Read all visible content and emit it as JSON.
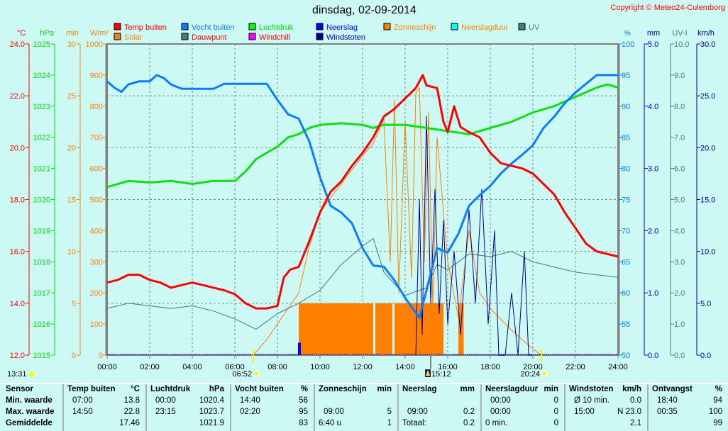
{
  "title": "dinsdag, 02-09-2014",
  "copyright": "Copyright © Meteo24-Culemborg",
  "colors": {
    "background": "#cdf9f5",
    "temp": "#ff0000",
    "humidity": "#0a7dff",
    "pressure": "#10e010",
    "rain": "#0000ff",
    "solar": "#ff8000",
    "dewpoint": "#3c7a7a",
    "windchill": "#ff00ff",
    "gusts": "#00009a",
    "sunshine": "#ff8000",
    "rainduration": "#00ffff",
    "uv": "#408080"
  },
  "legend": [
    {
      "label": "Temp buiten",
      "color": "#ff0000",
      "text_color": "#ff0000"
    },
    {
      "label": "Vocht buiten",
      "color": "#0a7dff",
      "text_color": "#0a7dff"
    },
    {
      "label": "Luchtdruk",
      "color": "#00ff00",
      "text_color": "#00e000"
    },
    {
      "label": "Neerslag",
      "color": "#0000ff",
      "text_color": "#0000ff"
    },
    {
      "label": "Zonneschijn",
      "color": "#ff8000",
      "text_color": "#ff8000"
    },
    {
      "label": "Neerslagduur",
      "color": "#00ffff",
      "text_color": "#ff8000"
    },
    {
      "label": "UV",
      "color": "#408080",
      "text_color": "#408080"
    },
    {
      "label": "Solar",
      "color": "#ff8000",
      "text_color": "#ff8000"
    },
    {
      "label": "Dauwpunt",
      "color": "#408080",
      "text_color": "#ff0000"
    },
    {
      "label": "Windchill",
      "color": "#ff00ff",
      "text_color": "#ff0000"
    },
    {
      "label": "Windstoten",
      "color": "#00009a",
      "text_color": "#00009a"
    }
  ],
  "chart_data": {
    "type": "line",
    "title": "dinsdag, 02-09-2014",
    "grid": true,
    "legend_position": "top",
    "x_ticks": [
      "00:00",
      "02:00",
      "04:00",
      "06:00",
      "08:00",
      "10:00",
      "12:00",
      "14:00",
      "16:00",
      "18:00",
      "20:00",
      "22:00",
      "24:00"
    ],
    "xlim": [
      0,
      24
    ],
    "axes": [
      {
        "unit": "°C",
        "side": "left",
        "range": [
          12,
          24
        ],
        "ticks": [
          "12.0",
          "14.0",
          "16.0",
          "18.0",
          "20.0",
          "22.0",
          "24.0"
        ],
        "color": "#ff0000"
      },
      {
        "unit": "hPa",
        "side": "left",
        "range": [
          1015,
          1025
        ],
        "ticks": [
          "1015",
          "1016",
          "1017",
          "1018",
          "1019",
          "1020",
          "1021",
          "1022",
          "1023",
          "1024",
          "1025"
        ],
        "color": "#00e000"
      },
      {
        "unit": "min",
        "side": "left",
        "range": [
          0,
          30
        ],
        "ticks": [
          "0",
          "5",
          "10",
          "15",
          "20",
          "25",
          "30"
        ],
        "color": "#ff8000"
      },
      {
        "unit": "W/m²",
        "side": "left",
        "range": [
          0,
          1000
        ],
        "ticks": [
          "0",
          "100",
          "200",
          "300",
          "400",
          "500",
          "600",
          "700",
          "800",
          "900",
          "1000"
        ],
        "color": "#ff8000"
      },
      {
        "unit": "%",
        "side": "right",
        "range": [
          50,
          100
        ],
        "ticks": [
          "50",
          "55",
          "60",
          "65",
          "70",
          "75",
          "80",
          "85",
          "90",
          "95",
          "100"
        ],
        "color": "#0a7dff"
      },
      {
        "unit": "mm",
        "side": "right",
        "range": [
          0,
          5
        ],
        "ticks": [
          "0.0",
          "1.0",
          "2.0",
          "3.0",
          "4.0",
          "5.0"
        ],
        "color": "#0000cc"
      },
      {
        "unit": "UV-I",
        "side": "right",
        "range": [
          0,
          10
        ],
        "ticks": [
          "0.0",
          "1.0",
          "2.0",
          "3.0",
          "4.0",
          "5.0",
          "6.0",
          "7.0",
          "8.0",
          "9.0",
          "10.0"
        ],
        "color": "#408080"
      },
      {
        "unit": "km/h",
        "side": "right",
        "range": [
          0,
          30
        ],
        "ticks": [
          "0.0",
          "5.0",
          "10.0",
          "15.0",
          "20.0",
          "25.0",
          "30.0"
        ],
        "color": "#00009a"
      }
    ],
    "series": [
      {
        "name": "Temp buiten",
        "axis": "°C",
        "color": "#ff0000",
        "width": 3,
        "x": [
          0,
          0.5,
          1,
          1.5,
          2,
          2.5,
          3,
          3.5,
          4,
          4.5,
          5,
          5.5,
          6,
          6.5,
          7,
          7.5,
          8,
          8.3,
          8.6,
          9,
          9.5,
          10,
          10.5,
          11,
          11.5,
          12,
          12.5,
          13,
          13.5,
          14,
          14.5,
          14.83,
          15,
          15.5,
          15.8,
          16,
          16.3,
          16.6,
          17,
          17.5,
          18,
          18.5,
          19,
          19.5,
          20,
          20.5,
          21,
          21.5,
          22,
          22.5,
          23,
          23.5,
          24
        ],
        "y": [
          14.8,
          14.9,
          15.1,
          15.1,
          14.9,
          14.8,
          14.6,
          14.7,
          14.8,
          14.7,
          14.6,
          14.5,
          14.35,
          14.0,
          13.8,
          13.8,
          13.9,
          15.0,
          15.3,
          15.4,
          16.4,
          17.5,
          18.3,
          18.7,
          19.3,
          19.8,
          20.4,
          21.2,
          21.5,
          21.9,
          22.3,
          22.8,
          22.4,
          22.3,
          21.0,
          20.6,
          21.6,
          20.8,
          20.6,
          20.4,
          19.8,
          19.4,
          19.3,
          19.2,
          19.0,
          18.6,
          18.2,
          17.5,
          16.9,
          16.3,
          16.0,
          15.9,
          15.8
        ]
      },
      {
        "name": "Vocht buiten",
        "axis": "%",
        "color": "#0a7dff",
        "width": 3,
        "x": [
          0,
          0.33,
          0.67,
          1,
          1.5,
          2,
          2.33,
          2.67,
          3,
          3.5,
          4,
          5,
          5.5,
          6,
          7,
          7.5,
          8,
          8.5,
          9,
          9.5,
          10,
          10.5,
          11,
          11.5,
          12,
          12.5,
          13,
          13.5,
          14,
          14.67,
          15,
          15.5,
          16,
          16.5,
          17,
          17.5,
          18,
          18.5,
          19,
          19.5,
          20,
          20.5,
          21,
          21.5,
          22,
          22.5,
          23,
          24
        ],
        "y": [
          94,
          93,
          92.3,
          93.5,
          94,
          94,
          95,
          94.5,
          93.5,
          92.8,
          92.8,
          92.8,
          93.6,
          93.6,
          93.6,
          93.6,
          91,
          88.7,
          88,
          84.3,
          78.6,
          74,
          72.9,
          71.2,
          67.2,
          64.4,
          64.2,
          62,
          59.2,
          56,
          60.4,
          67.2,
          66.5,
          69.5,
          74,
          75.7,
          77.2,
          79.2,
          80.8,
          82.2,
          83.7,
          86.5,
          88.3,
          90.5,
          92.2,
          93.6,
          95,
          95
        ]
      },
      {
        "name": "Luchtdruk",
        "axis": "hPa",
        "color": "#10e010",
        "width": 3,
        "x": [
          0,
          1,
          2,
          3,
          4,
          5,
          6,
          6.5,
          7,
          7.5,
          8,
          8.5,
          9,
          9.5,
          10,
          11,
          12,
          12.5,
          13,
          14,
          15,
          16,
          17,
          18,
          19,
          20,
          21,
          22,
          23,
          23.5,
          24
        ],
        "y": [
          1020.4,
          1020.6,
          1020.55,
          1020.6,
          1020.5,
          1020.6,
          1020.6,
          1020.9,
          1021.3,
          1021.5,
          1021.7,
          1022.0,
          1022.1,
          1022.3,
          1022.4,
          1022.45,
          1022.4,
          1022.3,
          1022.4,
          1022.4,
          1022.3,
          1022.2,
          1022.1,
          1022.3,
          1022.5,
          1022.8,
          1023.0,
          1023.3,
          1023.6,
          1023.7,
          1023.6
        ]
      },
      {
        "name": "Dauwpunt",
        "axis": "°C",
        "color": "#3c7a7a",
        "width": 1,
        "x": [
          0,
          1,
          2,
          3,
          4,
          5,
          6,
          7,
          8,
          9,
          10,
          11,
          12,
          12.5,
          13,
          14,
          15,
          15.5,
          16,
          17,
          18,
          19,
          20,
          21,
          22,
          23,
          24
        ],
        "y": [
          13.8,
          14.0,
          13.9,
          13.8,
          13.9,
          13.7,
          13.4,
          13.0,
          13.6,
          14.0,
          14.5,
          15.5,
          16.2,
          16.5,
          15.2,
          14.3,
          14.6,
          15.5,
          15.3,
          15.9,
          15.8,
          16.0,
          15.6,
          15.4,
          15.2,
          15.1,
          15.0
        ]
      },
      {
        "name": "Solar",
        "axis": "W/m²",
        "color": "#ff8000",
        "width": 1,
        "x": [
          6.87,
          7.5,
          8,
          8.5,
          9,
          9.5,
          10,
          11,
          12,
          12.5,
          13,
          13.3,
          13.5,
          13.7,
          14,
          14.3,
          14.5,
          14.67,
          14.9,
          15.1,
          15.3,
          15.5,
          16,
          16.5,
          17,
          17.5,
          18,
          19,
          20,
          20.4
        ],
        "y": [
          0,
          50,
          100,
          150,
          200,
          350,
          460,
          550,
          640,
          680,
          760,
          300,
          820,
          200,
          750,
          250,
          840,
          860,
          300,
          780,
          150,
          700,
          300,
          120,
          400,
          200,
          150,
          80,
          20,
          0
        ]
      },
      {
        "name": "Windstoten",
        "axis": "km/h",
        "color": "#00009a",
        "width": 1,
        "x": [
          14.5,
          14.67,
          14.8,
          15,
          15.2,
          15.4,
          15.6,
          15.8,
          16,
          16.3,
          16.6,
          17,
          17.3,
          17.6,
          17.9,
          18.2,
          18.4,
          18.7,
          19,
          19.3,
          19.6,
          19.8,
          20
        ],
        "y": [
          0,
          15,
          2,
          23,
          5,
          16,
          4,
          13,
          3,
          10,
          2,
          14,
          5,
          16,
          3,
          12,
          0,
          0,
          6,
          0,
          10,
          0,
          0
        ]
      }
    ],
    "sunshine_minutes": {
      "axis": "min",
      "value_per_interval": 5,
      "intervals": [
        [
          9.0,
          12.5
        ],
        [
          12.6,
          13.4
        ],
        [
          13.5,
          15.8
        ],
        [
          16.5,
          16.75
        ]
      ]
    },
    "rain_bars": {
      "axis": "mm",
      "x": [
        9.0
      ],
      "y": [
        0.2
      ]
    },
    "markers": {
      "day_length": "13:31",
      "sunrise": "06:52",
      "solar_noon": "15:12",
      "sunset": "20:24"
    }
  },
  "table": {
    "row_labels": [
      "Sensor",
      "Min. waarde",
      "Max. waarde",
      "Gemiddelde"
    ],
    "columns": [
      {
        "header": "Temp buiten",
        "unit": "°C",
        "min_time": "07:00",
        "min_value": "13.8",
        "max_time": "14:50",
        "max_value": "22.8",
        "avg_label": "",
        "avg_value": "17.46"
      },
      {
        "header": "Luchtdruk",
        "unit": "hPa",
        "min_time": "00:00",
        "min_value": "1020.4",
        "max_time": "23:15",
        "max_value": "1023.7",
        "avg_label": "",
        "avg_value": "1021.9"
      },
      {
        "header": "Vocht buiten",
        "unit": "%",
        "min_time": "14:40",
        "min_value": "56",
        "max_time": "02:20",
        "max_value": "95",
        "avg_label": "",
        "avg_value": "83"
      },
      {
        "header": "Zonneschijn",
        "unit": "min",
        "min_time": "",
        "min_value": "",
        "max_time": "09:00",
        "max_value": "5",
        "avg_label": "6:40 u",
        "avg_value": "1"
      },
      {
        "header": "Neerslag",
        "unit": "mm",
        "min_time": "",
        "min_value": "",
        "max_time": "09:00",
        "max_value": "0.2",
        "avg_label": "Totaal:",
        "avg_value": "0.2"
      },
      {
        "header": "Neerslagduur",
        "unit": "min",
        "min_time": "00:00",
        "min_value": "0",
        "max_time": "00:00",
        "max_value": "0",
        "avg_label": "0 min.",
        "avg_value": "0"
      },
      {
        "header": "Windstoten",
        "unit": "km/h",
        "min_time": "Ø 10 min.",
        "min_value": "0.0",
        "max_time": "15:00",
        "max_value": "N 23.0",
        "avg_label": "",
        "avg_value": "2.1"
      },
      {
        "header": "Ontvangst",
        "unit": "%",
        "min_time": "18:40",
        "min_value": "94",
        "max_time": "00:35",
        "max_value": "100",
        "avg_label": "",
        "avg_value": "99"
      }
    ]
  }
}
